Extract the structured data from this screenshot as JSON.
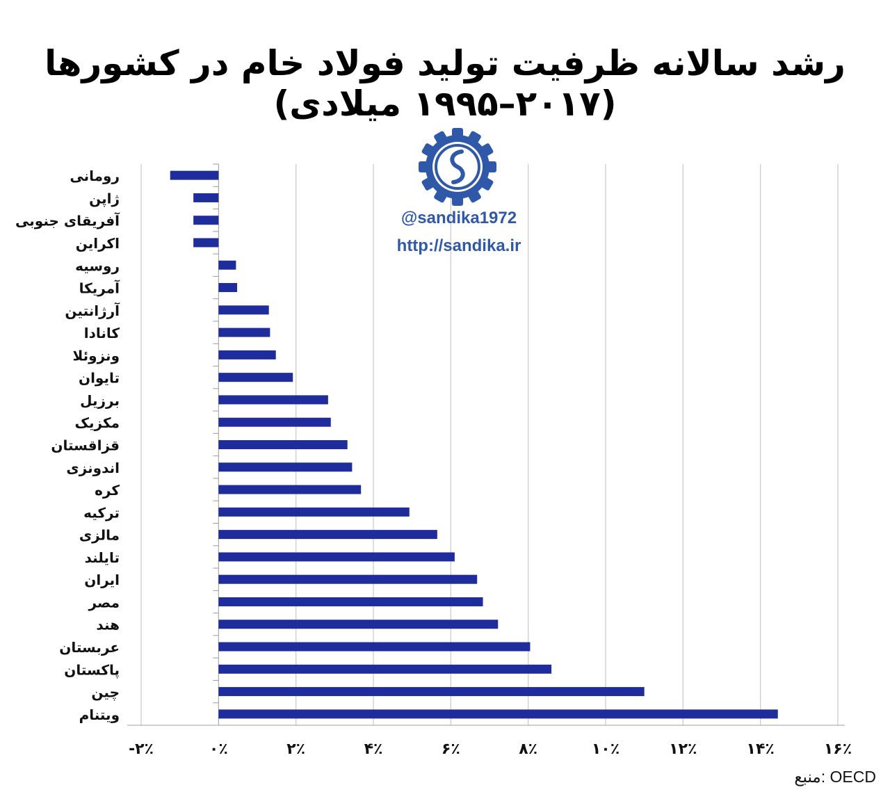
{
  "chart_data": {
    "type": "bar",
    "orientation": "horizontal",
    "title": "رشد سالانه ظرفیت تولید فولاد خام در کشورها (۲۰۱۷–۱۹۹۵ میلادی)",
    "categories": [
      "رومانی",
      "ژاپن",
      "آفریقای جنوبی",
      "اکراین",
      "روسیه",
      "آمریکا",
      "آرژانتین",
      "کانادا",
      "ونزوئلا",
      "تایوان",
      "برزیل",
      "مکزیک",
      "قزاقستان",
      "اندونزی",
      "کره",
      "ترکیه",
      "مالزی",
      "تایلند",
      "ایران",
      "مصر",
      "هند",
      "عربستان",
      "پاکستان",
      "چین",
      "ویتنام"
    ],
    "values": [
      -1.25,
      -0.65,
      -0.65,
      -0.65,
      0.45,
      0.48,
      1.3,
      1.33,
      1.48,
      1.92,
      2.83,
      2.9,
      3.33,
      3.45,
      3.68,
      4.93,
      5.65,
      6.1,
      6.68,
      6.83,
      7.22,
      8.05,
      8.6,
      11.0,
      14.45
    ],
    "xlim": [
      -2,
      16
    ],
    "xticks": [
      -2,
      0,
      2,
      4,
      6,
      8,
      10,
      12,
      14,
      16
    ],
    "xtick_labels": [
      "-۲٪",
      "۰٪",
      "۲٪",
      "۴٪",
      "۶٪",
      "۸٪",
      "۱۰٪",
      "۱۲٪",
      "۱۴٪",
      "۱۶٪"
    ],
    "bar_color": "#1f2d9c",
    "grid": true
  },
  "watermark": {
    "handle": "@sandika1972",
    "website": "http://sandika.ir",
    "color": "#2f59a8",
    "logo_icon": "gear-logo-icon"
  },
  "source": "منبع: OECD"
}
